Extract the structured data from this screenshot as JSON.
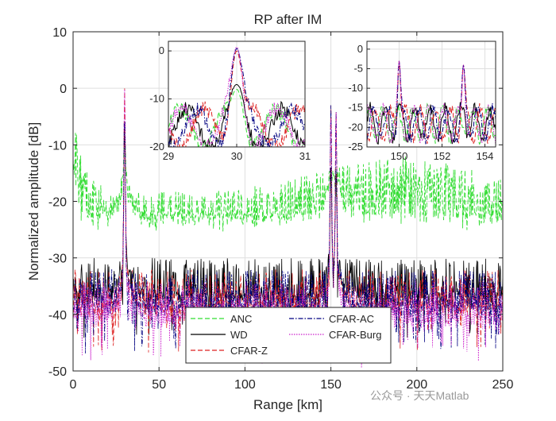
{
  "chart_data": {
    "type": "line",
    "title": "RP after IM",
    "xlabel": "Range [km]",
    "ylabel": "Normalized amplitude [dB]",
    "xlim": [
      0,
      250
    ],
    "ylim": [
      -50,
      10
    ],
    "xticks": [
      0,
      50,
      100,
      150,
      200,
      250
    ],
    "yticks": [
      10,
      0,
      -10,
      -20,
      -30,
      -40,
      -50
    ],
    "grid": true,
    "legend_position": "bottom-center",
    "series": [
      {
        "name": "ANC",
        "color": "#33dd33",
        "style": "dashed",
        "floor": -24,
        "peaks": [
          {
            "x": 30,
            "y": -8
          },
          {
            "x": 150,
            "y": -20
          },
          {
            "x": 153,
            "y": -20
          }
        ]
      },
      {
        "name": "WD",
        "color": "#000000",
        "style": "solid",
        "floor": -38,
        "peaks": [
          {
            "x": 30,
            "y": -7
          },
          {
            "x": 150,
            "y": -14
          },
          {
            "x": 153,
            "y": -15
          }
        ]
      },
      {
        "name": "CFAR-Z",
        "color": "#dd2222",
        "style": "dashed",
        "floor": -40,
        "peaks": [
          {
            "x": 30,
            "y": 0
          },
          {
            "x": 150,
            "y": -3
          },
          {
            "x": 153,
            "y": -4
          }
        ]
      },
      {
        "name": "CFAR-AC",
        "color": "#000080",
        "style": "dashdot",
        "floor": -40,
        "peaks": [
          {
            "x": 30,
            "y": 0.5
          },
          {
            "x": 150,
            "y": -3
          },
          {
            "x": 153,
            "y": -4
          }
        ]
      },
      {
        "name": "CFAR-Burg",
        "color": "#cc22cc",
        "style": "dotted",
        "floor": -42,
        "peaks": [
          {
            "x": 30,
            "y": 0.8
          },
          {
            "x": 150,
            "y": -3
          },
          {
            "x": 153,
            "y": -4
          }
        ]
      }
    ],
    "insets": [
      {
        "xlim": [
          29,
          31
        ],
        "ylim": [
          -20,
          2
        ],
        "xticks": [
          29,
          30,
          31
        ],
        "yticks": [
          0,
          -10,
          -20
        ]
      },
      {
        "xlim": [
          148.5,
          154.5
        ],
        "ylim": [
          -25,
          2
        ],
        "xticks": [
          150,
          152,
          154
        ],
        "yticks": [
          0,
          -5,
          -10,
          -15,
          -20,
          -25
        ]
      }
    ]
  },
  "watermark": "公众号 · 天天Matlab"
}
